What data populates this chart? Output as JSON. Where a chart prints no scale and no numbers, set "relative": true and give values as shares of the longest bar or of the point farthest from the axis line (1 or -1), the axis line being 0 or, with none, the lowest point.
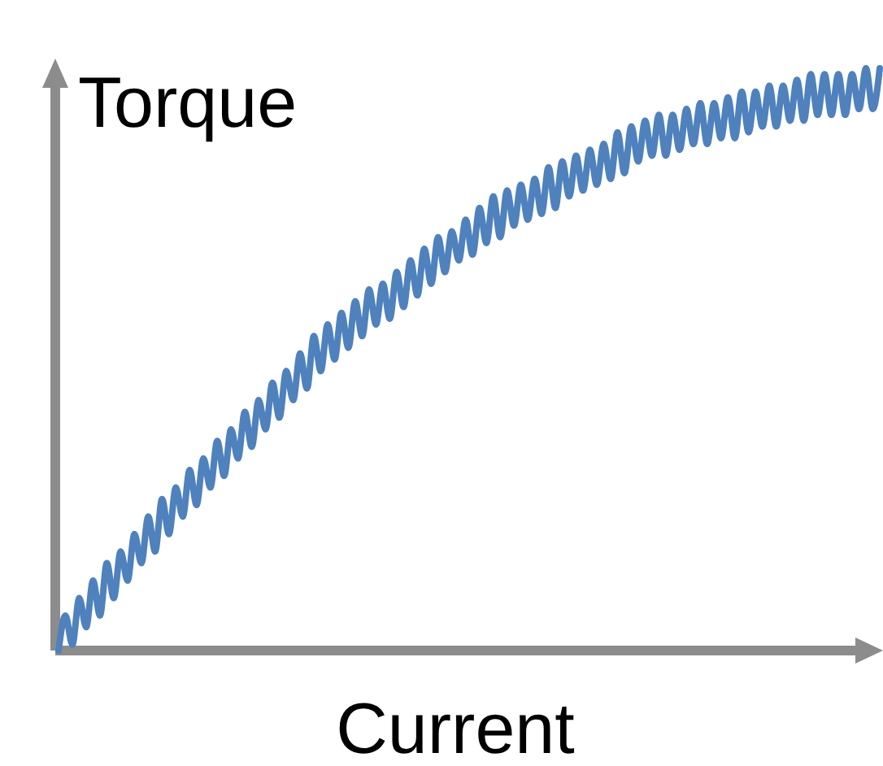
{
  "chart_data": {
    "type": "line",
    "relative": true,
    "xlabel": "Current",
    "ylabel": "Torque",
    "marker": "none",
    "line_style": "solid",
    "categories": [
      null,
      null,
      null,
      null,
      null,
      null,
      null,
      null,
      null,
      null,
      null,
      null,
      null,
      null,
      null,
      null,
      null,
      null,
      null,
      null,
      null,
      null,
      null,
      null,
      null,
      null,
      null,
      null,
      null,
      null,
      null,
      null,
      null,
      null,
      null,
      null,
      null,
      null,
      null,
      null,
      null,
      null,
      null,
      null,
      null,
      null,
      null,
      null,
      null,
      null,
      null,
      null,
      null,
      null,
      null,
      null,
      null,
      null,
      null,
      null,
      null,
      null,
      null,
      null,
      null,
      null,
      null,
      null,
      null,
      null,
      null,
      null,
      null,
      null,
      null,
      null,
      null,
      null,
      null,
      null,
      null,
      null,
      null,
      null,
      null,
      null,
      null,
      null,
      null,
      null,
      null,
      null,
      null,
      null,
      null,
      null,
      null,
      null,
      null,
      null,
      null,
      null,
      null,
      null,
      null,
      null,
      null,
      null,
      null,
      null,
      null,
      null,
      null,
      null,
      null,
      null,
      null,
      null,
      null,
      null
    ],
    "series": [
      {
        "color": "#4f81bd",
        "values": [
          0,
          0.06,
          0.01,
          0.09,
          0.04,
          0.12,
          0.06,
          0.15,
          0.09,
          0.17,
          0.12,
          0.2,
          0.15,
          0.23,
          0.17,
          0.26,
          0.2,
          0.28,
          0.23,
          0.31,
          0.25,
          0.33,
          0.28,
          0.36,
          0.3,
          0.38,
          0.33,
          0.41,
          0.35,
          0.43,
          0.38,
          0.46,
          0.4,
          0.48,
          0.43,
          0.51,
          0.45,
          0.54,
          0.48,
          0.56,
          0.5,
          0.58,
          0.52,
          0.6,
          0.54,
          0.62,
          0.56,
          0.63,
          0.57,
          0.65,
          0.59,
          0.67,
          0.61,
          0.69,
          0.63,
          0.71,
          0.65,
          0.72,
          0.67,
          0.74,
          0.68,
          0.76,
          0.7,
          0.78,
          0.71,
          0.79,
          0.73,
          0.8,
          0.74,
          0.81,
          0.75,
          0.83,
          0.76,
          0.84,
          0.78,
          0.85,
          0.79,
          0.86,
          0.8,
          0.87,
          0.81,
          0.89,
          0.82,
          0.9,
          0.84,
          0.91,
          0.85,
          0.92,
          0.85,
          0.92,
          0.86,
          0.93,
          0.87,
          0.94,
          0.87,
          0.94,
          0.88,
          0.95,
          0.88,
          0.96,
          0.89,
          0.96,
          0.9,
          0.97,
          0.9,
          0.97,
          0.91,
          0.98,
          0.91,
          0.99,
          0.92,
          0.99,
          0.92,
          0.99,
          0.92,
          0.99,
          0.93,
          1,
          0.93,
          1
        ]
      }
    ]
  }
}
